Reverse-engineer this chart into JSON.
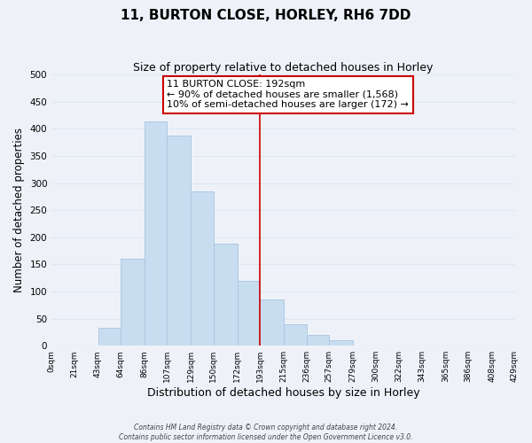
{
  "title": "11, BURTON CLOSE, HORLEY, RH6 7DD",
  "subtitle": "Size of property relative to detached houses in Horley",
  "bar_color": "#c8ddf0",
  "bar_edge_color": "#a8c4e0",
  "bins": [
    0,
    21,
    43,
    64,
    86,
    107,
    129,
    150,
    172,
    193,
    215,
    236,
    257,
    279,
    300,
    322,
    343,
    365,
    386,
    408,
    429
  ],
  "bin_labels": [
    "0sqm",
    "21sqm",
    "43sqm",
    "64sqm",
    "86sqm",
    "107sqm",
    "129sqm",
    "150sqm",
    "172sqm",
    "193sqm",
    "215sqm",
    "236sqm",
    "257sqm",
    "279sqm",
    "300sqm",
    "322sqm",
    "343sqm",
    "365sqm",
    "386sqm",
    "408sqm",
    "429sqm"
  ],
  "counts": [
    0,
    0,
    33,
    160,
    413,
    388,
    285,
    188,
    120,
    85,
    40,
    20,
    10,
    0,
    0,
    0,
    0,
    0,
    0,
    0
  ],
  "ylim": [
    0,
    500
  ],
  "yticks": [
    0,
    50,
    100,
    150,
    200,
    250,
    300,
    350,
    400,
    450,
    500
  ],
  "ylabel": "Number of detached properties",
  "xlabel": "Distribution of detached houses by size in Horley",
  "vline_x": 193,
  "vline_color": "#cc0000",
  "annotation_title": "11 BURTON CLOSE: 192sqm",
  "annotation_line1": "← 90% of detached houses are smaller (1,568)",
  "annotation_line2": "10% of semi-detached houses are larger (172) →",
  "annotation_box_facecolor": "#ffffff",
  "annotation_box_edgecolor": "#cc0000",
  "footer1": "Contains HM Land Registry data © Crown copyright and database right 2024.",
  "footer2": "Contains public sector information licensed under the Open Government Licence v3.0.",
  "grid_color": "#dce8f4",
  "background_color": "#eef2f8"
}
